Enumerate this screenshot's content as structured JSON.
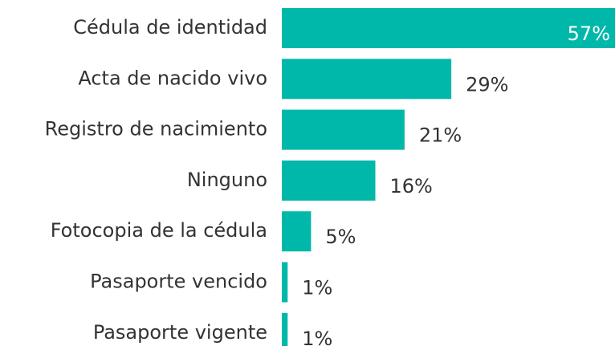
{
  "chart_data": {
    "type": "bar",
    "orientation": "horizontal",
    "categories": [
      "Cédula de identidad",
      "Acta de nacido vivo",
      "Registro de nacimiento",
      "Ninguno",
      "Fotocopia de la cédula",
      "Pasaporte vencido",
      "Pasaporte vigente"
    ],
    "values": [
      57,
      29,
      21,
      16,
      5,
      1,
      1
    ],
    "value_labels": [
      "57%",
      "29%",
      "21%",
      "16%",
      "5%",
      "1%",
      "1%"
    ],
    "color": "#00b8a9"
  }
}
